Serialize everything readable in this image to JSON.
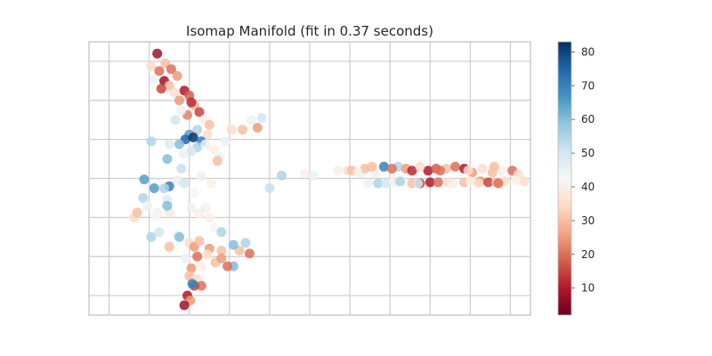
{
  "chart_data": {
    "type": "scatter",
    "title": "Isomap Manifold (fit in 0.37 seconds)",
    "xlabel": "",
    "ylabel": "",
    "grid": true,
    "ticks_hidden": true,
    "colormap": "RdBu",
    "colorbar": {
      "range": [
        2,
        83
      ],
      "ticks": [
        10,
        20,
        30,
        40,
        50,
        60,
        70,
        80
      ],
      "tick_labels": [
        "10",
        "20",
        "30",
        "40",
        "50",
        "60",
        "70",
        "80"
      ]
    },
    "xlim": [
      -4,
      40
    ],
    "ylim": [
      -14,
      14
    ],
    "series": [
      {
        "points": [
          [
            2.8,
            12.8,
            8
          ],
          [
            2.2,
            11.5,
            35
          ],
          [
            3.0,
            11.0,
            20
          ],
          [
            3.6,
            11.8,
            30
          ],
          [
            4.2,
            11.2,
            20
          ],
          [
            4.8,
            10.5,
            25
          ],
          [
            3.5,
            10.0,
            8
          ],
          [
            4.0,
            9.5,
            30
          ],
          [
            5.5,
            9.0,
            10
          ],
          [
            6.0,
            8.5,
            18
          ],
          [
            4.5,
            8.8,
            35
          ],
          [
            5.0,
            8.0,
            25
          ],
          [
            6.5,
            7.5,
            28
          ],
          [
            7.0,
            6.8,
            15
          ],
          [
            5.8,
            6.5,
            22
          ],
          [
            7.5,
            6.0,
            40
          ],
          [
            3.2,
            9.2,
            15
          ],
          [
            2.5,
            10.2,
            45
          ],
          [
            6.2,
            7.8,
            12
          ],
          [
            8.0,
            5.5,
            30
          ],
          [
            5.2,
            7.0,
            45
          ],
          [
            6.8,
            5.0,
            55
          ],
          [
            7.8,
            4.5,
            35
          ],
          [
            4.6,
            6.0,
            50
          ],
          [
            6.0,
            4.5,
            65
          ],
          [
            5.6,
            4.0,
            75
          ],
          [
            6.4,
            4.2,
            82
          ],
          [
            7.2,
            3.8,
            70
          ],
          [
            5.0,
            3.5,
            60
          ],
          [
            6.8,
            3.2,
            55
          ],
          [
            7.6,
            3.5,
            45
          ],
          [
            8.4,
            3.0,
            40
          ],
          [
            6.2,
            2.8,
            50
          ],
          [
            5.4,
            2.5,
            45
          ],
          [
            2.2,
            3.8,
            55
          ],
          [
            4.0,
            3.5,
            48
          ],
          [
            3.8,
            2.0,
            60
          ],
          [
            5.2,
            1.0,
            52
          ],
          [
            9.0,
            2.2,
            45
          ],
          [
            4.8,
            -0.2,
            45
          ],
          [
            4.0,
            -0.8,
            70
          ],
          [
            2.5,
            -1.0,
            65
          ],
          [
            1.4,
            -2.0,
            55
          ],
          [
            1.5,
            -0.1,
            65
          ],
          [
            3.5,
            -1.0,
            55
          ],
          [
            5.5,
            -0.5,
            50
          ],
          [
            6.5,
            -1.5,
            42
          ],
          [
            8.8,
            1.8,
            30
          ],
          [
            8.2,
            -0.5,
            40
          ],
          [
            7.2,
            0.2,
            45
          ],
          [
            2.8,
            -3.5,
            40
          ],
          [
            1.8,
            -2.8,
            45
          ],
          [
            0.5,
            -4.0,
            35
          ],
          [
            0.8,
            -3.5,
            30
          ],
          [
            2.6,
            -3.8,
            42
          ],
          [
            3.8,
            -2.2,
            48
          ],
          [
            4.0,
            -3.5,
            38
          ],
          [
            6.2,
            -3.0,
            45
          ],
          [
            7.0,
            -3.6,
            40
          ],
          [
            7.6,
            -3.0,
            45
          ],
          [
            8.0,
            -4.0,
            40
          ],
          [
            8.5,
            -5.0,
            42
          ],
          [
            9.2,
            -5.5,
            55
          ],
          [
            14.0,
            -1.0,
            52
          ],
          [
            3.0,
            -5.5,
            50
          ],
          [
            2.2,
            -6.0,
            55
          ],
          [
            4.8,
            -5.8,
            45
          ],
          [
            5.0,
            -6.0,
            60
          ],
          [
            4.0,
            -7.0,
            30
          ],
          [
            6.0,
            -6.6,
            35
          ],
          [
            6.5,
            -7.0,
            25
          ],
          [
            7.0,
            -6.4,
            30
          ],
          [
            8.0,
            -7.2,
            25
          ],
          [
            9.2,
            -7.4,
            30
          ],
          [
            11.0,
            -7.4,
            30
          ],
          [
            12.0,
            -7.7,
            20
          ],
          [
            11.6,
            -6.6,
            55
          ],
          [
            10.4,
            -6.8,
            60
          ],
          [
            6.8,
            -8.0,
            20
          ],
          [
            7.8,
            -7.8,
            35
          ],
          [
            8.6,
            -8.6,
            30
          ],
          [
            9.2,
            -8.2,
            25
          ],
          [
            10.4,
            -9.0,
            60
          ],
          [
            9.8,
            -9.0,
            20
          ],
          [
            7.2,
            -9.0,
            40
          ],
          [
            6.2,
            -9.2,
            25
          ],
          [
            6.0,
            -10.0,
            30
          ],
          [
            6.7,
            -10.3,
            35
          ],
          [
            7.2,
            -11.0,
            20
          ],
          [
            6.5,
            -11.0,
            15
          ],
          [
            5.8,
            -12.0,
            10
          ],
          [
            6.1,
            -12.5,
            25
          ],
          [
            5.5,
            -13.0,
            8
          ],
          [
            6.3,
            -10.8,
            70
          ],
          [
            5.6,
            -8.2,
            45
          ],
          [
            3.8,
            -2.8,
            60
          ],
          [
            9.6,
            3.8,
            45
          ],
          [
            10.2,
            5.0,
            35
          ],
          [
            11.3,
            5.0,
            30
          ],
          [
            12.2,
            6.0,
            45
          ],
          [
            13.2,
            6.2,
            50
          ],
          [
            12.8,
            5.2,
            25
          ],
          [
            15.2,
            0.3,
            55
          ],
          [
            17.5,
            0.5,
            40
          ],
          [
            18.4,
            0.3,
            45
          ],
          [
            21.8,
            0.8,
            35
          ],
          [
            22.2,
            0.8,
            30
          ],
          [
            23.0,
            0.5,
            45
          ],
          [
            23.5,
            1.0,
            30
          ],
          [
            24.5,
            0.5,
            40
          ],
          [
            25.4,
            1.2,
            70
          ],
          [
            26.8,
            1.2,
            55
          ],
          [
            27.6,
            1.0,
            25
          ],
          [
            28.2,
            0.8,
            12
          ],
          [
            29.8,
            0.8,
            10
          ],
          [
            30.6,
            1.0,
            18
          ],
          [
            31.6,
            1.0,
            30
          ],
          [
            32.5,
            1.2,
            20
          ],
          [
            33.4,
            1.0,
            10
          ],
          [
            34.2,
            0.6,
            25
          ],
          [
            35.2,
            1.0,
            35
          ],
          [
            36.2,
            0.6,
            30
          ],
          [
            37.2,
            0.8,
            40
          ],
          [
            38.2,
            0.8,
            20
          ],
          [
            38.8,
            0.4,
            35
          ],
          [
            20.8,
            0.8,
            40
          ],
          [
            22.8,
            0.6,
            40
          ],
          [
            24.2,
            1.2,
            30
          ],
          [
            26.2,
            1.0,
            20
          ],
          [
            29.0,
            1.2,
            35
          ],
          [
            31.0,
            0.8,
            20
          ],
          [
            33.8,
            0.8,
            35
          ],
          [
            36.4,
            1.2,
            30
          ],
          [
            23.8,
            -0.5,
            45
          ],
          [
            24.8,
            -0.5,
            55
          ],
          [
            25.6,
            -0.5,
            50
          ],
          [
            26.4,
            -0.3,
            40
          ],
          [
            27.2,
            -0.3,
            45
          ],
          [
            28.2,
            -0.5,
            30
          ],
          [
            29.0,
            -0.5,
            15
          ],
          [
            30.0,
            -0.4,
            10
          ],
          [
            30.8,
            -0.4,
            20
          ],
          [
            31.8,
            -0.4,
            35
          ],
          [
            33.4,
            -0.4,
            30
          ],
          [
            34.0,
            -0.3,
            40
          ],
          [
            35.0,
            -0.3,
            25
          ],
          [
            35.8,
            -0.4,
            15
          ],
          [
            36.6,
            -0.4,
            30
          ],
          [
            37.4,
            -0.3,
            35
          ],
          [
            38.6,
            -0.2,
            40
          ],
          [
            39.4,
            -0.3,
            35
          ],
          [
            27.0,
            -0.3,
            55
          ],
          [
            28.8,
            -0.5,
            50
          ],
          [
            32.2,
            -0.5,
            40
          ],
          [
            34.8,
            -0.5,
            35
          ],
          [
            36.8,
            -0.5,
            20
          ]
        ]
      }
    ]
  }
}
